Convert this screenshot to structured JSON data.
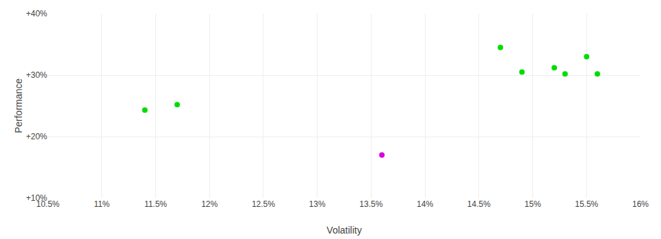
{
  "chart_data": {
    "type": "scatter",
    "xlabel": "Volatility",
    "ylabel": "Performance",
    "xlim": [
      0.105,
      0.16
    ],
    "ylim": [
      0.1,
      0.4
    ],
    "xticks": [
      {
        "value": 0.105,
        "label": "10.5%"
      },
      {
        "value": 0.11,
        "label": "11%"
      },
      {
        "value": 0.115,
        "label": "11.5%"
      },
      {
        "value": 0.12,
        "label": "12%"
      },
      {
        "value": 0.125,
        "label": "12.5%"
      },
      {
        "value": 0.13,
        "label": "13%"
      },
      {
        "value": 0.135,
        "label": "13.5%"
      },
      {
        "value": 0.14,
        "label": "14%"
      },
      {
        "value": 0.145,
        "label": "14.5%"
      },
      {
        "value": 0.15,
        "label": "15%"
      },
      {
        "value": 0.155,
        "label": "15.5%"
      },
      {
        "value": 0.16,
        "label": "16%"
      }
    ],
    "yticks": [
      {
        "value": 0.1,
        "label": "+10%"
      },
      {
        "value": 0.2,
        "label": "+20%"
      },
      {
        "value": 0.3,
        "label": "+30%"
      },
      {
        "value": 0.4,
        "label": "+40%"
      }
    ],
    "grid": true,
    "series": [
      {
        "color": "#00dd00",
        "x": [
          0.114,
          0.117,
          0.147,
          0.149,
          0.152,
          0.153,
          0.155,
          0.156
        ],
        "values": [
          0.243,
          0.252,
          0.345,
          0.305,
          0.312,
          0.302,
          0.33,
          0.302
        ]
      },
      {
        "color": "#dd00dd",
        "x": [
          0.136
        ],
        "values": [
          0.17
        ]
      }
    ]
  }
}
